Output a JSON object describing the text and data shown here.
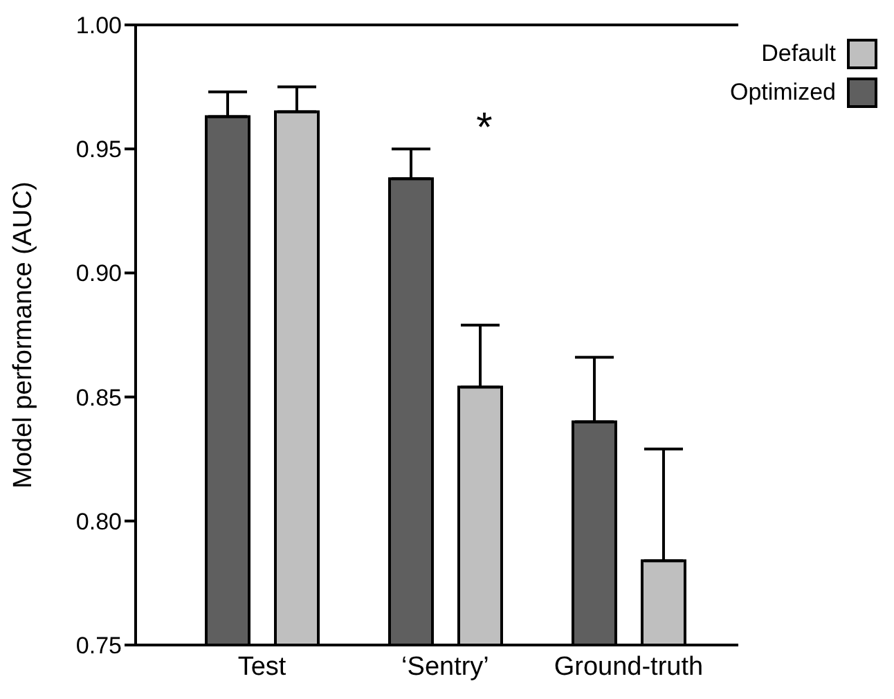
{
  "chart_data": {
    "type": "bar",
    "ylabel": "Model performance (AUC)",
    "categories": [
      "Test",
      "‘Sentry’",
      "Ground-truth"
    ],
    "series": [
      {
        "name": "Optimized",
        "color": "#5f5f5f",
        "values": [
          0.963,
          0.938,
          0.84
        ],
        "errors": [
          [
            0.963,
            0.973
          ],
          [
            0.938,
            0.95
          ],
          [
            0.84,
            0.866
          ]
        ]
      },
      {
        "name": "Default",
        "color": "#bfbfbf",
        "values": [
          0.965,
          0.854,
          0.784
        ],
        "errors": [
          [
            0.965,
            0.975
          ],
          [
            0.854,
            0.879
          ],
          [
            0.784,
            0.829
          ]
        ]
      }
    ],
    "ylim": [
      0.75,
      1.0
    ],
    "yticks": [
      {
        "value": 0.75,
        "label": "0.75"
      },
      {
        "value": 0.8,
        "label": "0.80"
      },
      {
        "value": 0.85,
        "label": "0.85"
      },
      {
        "value": 0.9,
        "label": "0.90"
      },
      {
        "value": 0.95,
        "label": "0.95"
      },
      {
        "value": 1.0,
        "label": "1.00"
      }
    ],
    "grid": false,
    "legend": "top right",
    "annotations": [
      "*"
    ]
  }
}
